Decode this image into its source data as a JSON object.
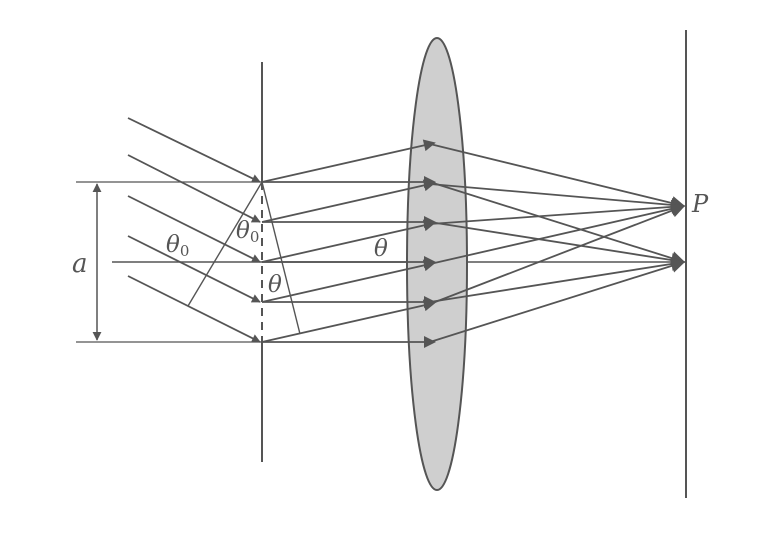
{
  "labels": {
    "width": "a",
    "incident_angle_1": "θ",
    "incident_angle_1_sub": "0",
    "incident_angle_2": "θ",
    "incident_angle_2_sub": "0",
    "diffraction_angle_slit": "θ",
    "diffraction_angle_lens": "θ",
    "point": "P"
  },
  "colors": {
    "line": "#555555",
    "lens_fill": "#cfcfcf",
    "background": "#ffffff"
  }
}
